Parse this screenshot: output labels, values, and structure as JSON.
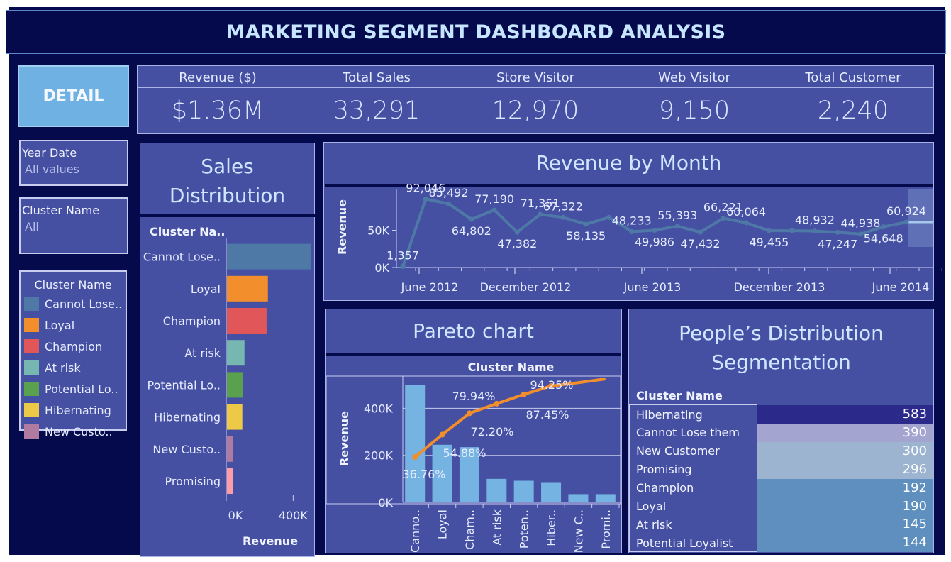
{
  "header": {
    "title": "MARKETING SEGMENT DASHBOARD ANALYSIS"
  },
  "detail_button": {
    "label": "DETAIL"
  },
  "kpis": [
    {
      "label": "Revenue ($)",
      "value": "$1.36M"
    },
    {
      "label": "Total Sales",
      "value": "33,291"
    },
    {
      "label": "Store Visitor",
      "value": "12,970"
    },
    {
      "label": "Web Visitor",
      "value": "9,150"
    },
    {
      "label": "Total Customer",
      "value": "2,240"
    }
  ],
  "filters": {
    "year_date": {
      "title": "Year Date",
      "value": "All values"
    },
    "cluster_name": {
      "title": "Cluster Name",
      "value": "All"
    }
  },
  "legend": {
    "title": "Cluster Name",
    "items": [
      {
        "label": "Cannot Lose..",
        "color": "#4e79a7"
      },
      {
        "label": "Loyal",
        "color": "#f28e2b"
      },
      {
        "label": "Champion",
        "color": "#e15759"
      },
      {
        "label": "At risk",
        "color": "#76b7b2"
      },
      {
        "label": "Potential Lo..",
        "color": "#59a14f"
      },
      {
        "label": "Hibernating",
        "color": "#edc948"
      },
      {
        "label": "New Custo..",
        "color": "#b07aa1"
      }
    ]
  },
  "sales_distribution": {
    "title_line1": "Sales",
    "title_line2": "Distribution",
    "column_header": "Cluster Na..",
    "xlabel": "Revenue"
  },
  "revenue_by_month": {
    "title": "Revenue by Month"
  },
  "pareto": {
    "title": "Pareto chart",
    "column_header": "Cluster Name"
  },
  "people_distribution": {
    "title_line1": "People’s Distribution",
    "title_line2": "Segmentation",
    "column_header": "Cluster Name",
    "rows": [
      {
        "name": "Hibernating",
        "value": "583",
        "color": "#2b2a8a"
      },
      {
        "name": "Cannot Lose them",
        "value": "390",
        "color": "#a3a4cf"
      },
      {
        "name": "New Customer",
        "value": "300",
        "color": "#9cb4cf"
      },
      {
        "name": "Promising",
        "value": "296",
        "color": "#9cb4cf"
      },
      {
        "name": "Champion",
        "value": "192",
        "color": "#5e8fbe"
      },
      {
        "name": "Loyal",
        "value": "190",
        "color": "#5e8fbe"
      },
      {
        "name": "At risk",
        "value": "145",
        "color": "#5e8fbe"
      },
      {
        "name": "Potential Loyalist",
        "value": "144",
        "color": "#5e8fbe"
      }
    ]
  },
  "chart_data": [
    {
      "type": "bar",
      "orientation": "horizontal",
      "categories": [
        "Cannot Lose..",
        "Loyal",
        "Champion",
        "At risk",
        "Potential Lo..",
        "Hibernating",
        "New Custo..",
        "Promising"
      ],
      "values": [
        500000,
        245000,
        237000,
        105000,
        97000,
        92000,
        38000,
        38000
      ],
      "colors": [
        "#4e79a7",
        "#f28e2b",
        "#e15759",
        "#76b7b2",
        "#59a14f",
        "#edc948",
        "#b07aa1",
        "#ff9da7"
      ],
      "xlabel": "Revenue",
      "xticks": [
        "0K",
        "400K"
      ],
      "xlim": [
        0,
        530000
      ]
    },
    {
      "type": "line",
      "title": "Revenue by Month",
      "ylabel": "Revenue",
      "x_ticks": [
        "June 2012",
        "December 2012",
        "June 2013",
        "December 2013",
        "June 2014"
      ],
      "y_ticks": [
        "0K",
        "50K"
      ],
      "ylim": [
        0,
        100000
      ],
      "values": [
        1357,
        92046,
        85492,
        64802,
        77190,
        47382,
        71351,
        67322,
        58135,
        67322,
        48233,
        49986,
        55393,
        47432,
        66221,
        60064,
        49455,
        49455,
        48932,
        47247,
        44938,
        54648,
        60924
      ],
      "point_labels": [
        "1,357",
        "92,046",
        "85,492",
        "64,802",
        "77,190",
        "47,382",
        "71,351",
        "67,322",
        "58,135",
        "",
        "48,233",
        "49,986",
        "55,393",
        "47,432",
        "66,221",
        "60,064",
        "49,455",
        "",
        "48,932",
        "47,247",
        "44,938",
        "54,648",
        "60,924"
      ],
      "grid": false
    },
    {
      "type": "bar",
      "subtype": "pareto",
      "categories": [
        "Canno..",
        "Loyal",
        "Cham..",
        "At risk",
        "Poten..",
        "Hiber..",
        "New C..",
        "Promi.."
      ],
      "values": [
        500000,
        245000,
        235000,
        100000,
        92000,
        86000,
        35000,
        35000
      ],
      "cumulative_pct": [
        36.76,
        54.88,
        72.2,
        79.94,
        87.45,
        94.25,
        97.0,
        100.0
      ],
      "cumulative_labels": [
        "36.76%",
        "54.88%",
        "72.20%",
        "79.94%",
        "87.45%",
        "94.25%",
        "",
        ""
      ],
      "ylabel": "Revenue",
      "y_ticks": [
        "0K",
        "200K",
        "400K"
      ],
      "ylim": [
        0,
        525000
      ],
      "bar_color": "#75b3e3",
      "line_color": "#f28e2b"
    },
    {
      "type": "table",
      "column_header": "Cluster Name",
      "rows": [
        "Hibernating",
        "Cannot Lose them",
        "New Customer",
        "Promising",
        "Champion",
        "Loyal",
        "At risk",
        "Potential Loyalist"
      ],
      "values": [
        583,
        390,
        300,
        296,
        192,
        190,
        145,
        144
      ]
    }
  ]
}
